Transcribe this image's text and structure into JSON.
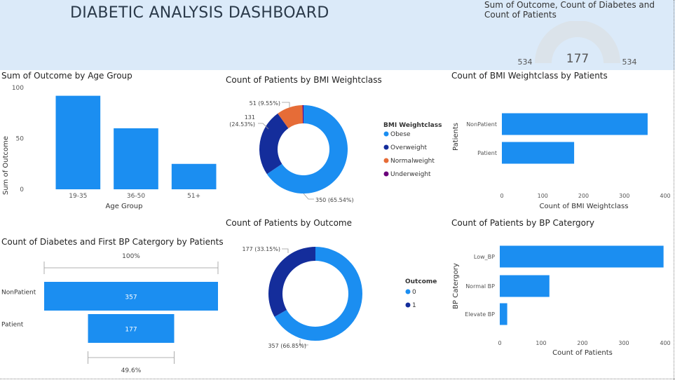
{
  "header": {
    "title": "DIABETIC ANALYSIS DASHBOARD"
  },
  "colors": {
    "blue": "#1b8ef1",
    "navy": "#142d9b",
    "orange": "#e66c37",
    "purple": "#6b007b",
    "gauge_fill": "#dbe3ea",
    "header_bg": "#dbeaf9"
  },
  "chart_data": [
    {
      "id": "gauge",
      "type": "gauge",
      "title": "Sum of Outcome, Count of Diabetes and Count of Patients",
      "value": 177,
      "min": 534,
      "max": 534,
      "value_label": "177",
      "min_label": "534",
      "max_label": "534"
    },
    {
      "id": "age",
      "type": "bar",
      "title": "Sum of Outcome by Age Group",
      "xlabel": "Age Group",
      "ylabel": "Sum of Outcome",
      "categories": [
        "19-35",
        "36-50",
        "51+"
      ],
      "values": [
        92,
        60,
        25
      ],
      "ylim": [
        0,
        100
      ],
      "yticks": [
        "0",
        "50",
        "100"
      ]
    },
    {
      "id": "bmi",
      "type": "pie",
      "title": "Count of Patients by BMI Weightclass",
      "legend_title": "BMI Weightclass",
      "categories": [
        "Obese",
        "Overweight",
        "Normalweight",
        "Underweight"
      ],
      "values": [
        350,
        131,
        51,
        2
      ],
      "labels": [
        [
          "350 (65.54%)"
        ],
        [
          "131",
          "(24.53%)"
        ],
        [
          "51 (9.55%)"
        ],
        []
      ]
    },
    {
      "id": "bmi_patients",
      "type": "bar",
      "orientation": "horizontal",
      "title": "Count of BMI Weightclass by Patients",
      "xlabel": "Count of BMI Weightclass",
      "ylabel": "Patients",
      "categories": [
        "NonPatient",
        "Patient"
      ],
      "values": [
        357,
        177
      ],
      "xlim": [
        0,
        400
      ],
      "xticks": [
        "0",
        "100",
        "200",
        "300",
        "400"
      ]
    },
    {
      "id": "funnel",
      "type": "funnel",
      "title": "Count of Diabetes and First BP Catergory by Patients",
      "categories": [
        "NonPatient",
        "Patient"
      ],
      "values": [
        357,
        177
      ],
      "value_labels": [
        "357",
        "177"
      ],
      "top_pct": "100%",
      "bottom_pct": "49.6%"
    },
    {
      "id": "outcome",
      "type": "pie",
      "title": "Count of Patients by Outcome",
      "legend_title": "Outcome",
      "categories": [
        "0",
        "1"
      ],
      "values": [
        357,
        177
      ],
      "labels": [
        [
          "357 (66.85%)"
        ],
        [
          "177 (33.15%)"
        ]
      ]
    },
    {
      "id": "bp",
      "type": "bar",
      "orientation": "horizontal",
      "title": "Count of Patients by BP Catergory",
      "xlabel": "Count of Patients",
      "ylabel": "BP Catergory",
      "categories": [
        "Low_BP",
        "Normal BP",
        "Elevate BP"
      ],
      "values": [
        396,
        120,
        18
      ],
      "xlim": [
        0,
        400
      ],
      "xticks": [
        "0",
        "100",
        "200",
        "300",
        "400"
      ]
    }
  ]
}
